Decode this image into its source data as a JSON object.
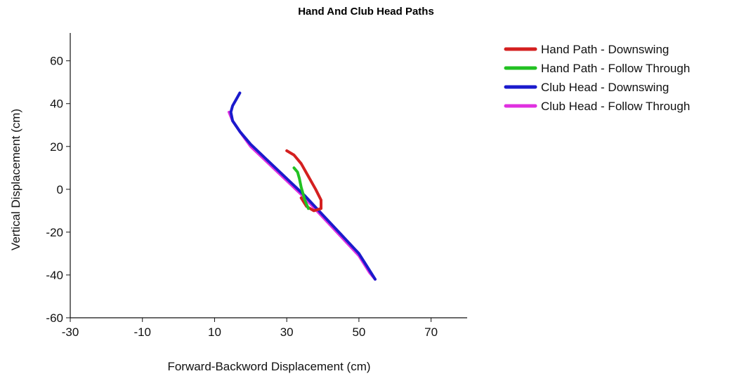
{
  "chart_data": {
    "type": "line",
    "title": "Hand  And Club Head Paths",
    "xlabel": "Forward-Backword Displacement (cm)",
    "ylabel": "Vertical Displacement (cm)",
    "xlim": [
      -30,
      80
    ],
    "ylim": [
      -60,
      73
    ],
    "x_ticks": [
      -30,
      -10,
      10,
      30,
      50,
      70
    ],
    "y_ticks": [
      60,
      40,
      20,
      0,
      -20,
      -40,
      -60
    ],
    "grid": false,
    "legend_position": "right",
    "series": [
      {
        "name": "Hand Path - Downswing",
        "color": "#d42020",
        "points": [
          [
            30,
            18
          ],
          [
            32,
            16
          ],
          [
            34,
            12
          ],
          [
            36,
            6
          ],
          [
            38,
            0
          ],
          [
            39.5,
            -5
          ],
          [
            39.5,
            -9
          ],
          [
            37.5,
            -10
          ],
          [
            35.5,
            -8
          ],
          [
            34,
            -4
          ]
        ]
      },
      {
        "name": "Hand Path - Follow Through",
        "color": "#22c122",
        "points": [
          [
            32,
            10
          ],
          [
            33,
            8
          ],
          [
            33.5,
            5
          ],
          [
            34,
            1
          ],
          [
            34.5,
            -2
          ],
          [
            35,
            -5
          ],
          [
            35.5,
            -7
          ],
          [
            36,
            -9
          ]
        ]
      },
      {
        "name": "Club Head - Downswing",
        "color": "#1a1acc",
        "points": [
          [
            17,
            45
          ],
          [
            16,
            42
          ],
          [
            15,
            39
          ],
          [
            14.5,
            36
          ],
          [
            15,
            32
          ],
          [
            17,
            27
          ],
          [
            20,
            21
          ],
          [
            25,
            13
          ],
          [
            30,
            5
          ],
          [
            35,
            -3
          ],
          [
            40,
            -12
          ],
          [
            45,
            -21
          ],
          [
            50,
            -30
          ],
          [
            53,
            -38
          ],
          [
            54.5,
            -42
          ]
        ]
      },
      {
        "name": "Club Head - Follow Through",
        "color": "#e030e0",
        "points": [
          [
            14,
            36
          ],
          [
            15,
            32
          ],
          [
            17,
            27
          ],
          [
            20,
            20
          ],
          [
            25,
            12
          ],
          [
            30,
            4
          ],
          [
            35,
            -4
          ],
          [
            40,
            -13
          ],
          [
            45,
            -22
          ],
          [
            50,
            -31
          ],
          [
            53,
            -39
          ],
          [
            54.5,
            -42
          ]
        ]
      }
    ]
  }
}
